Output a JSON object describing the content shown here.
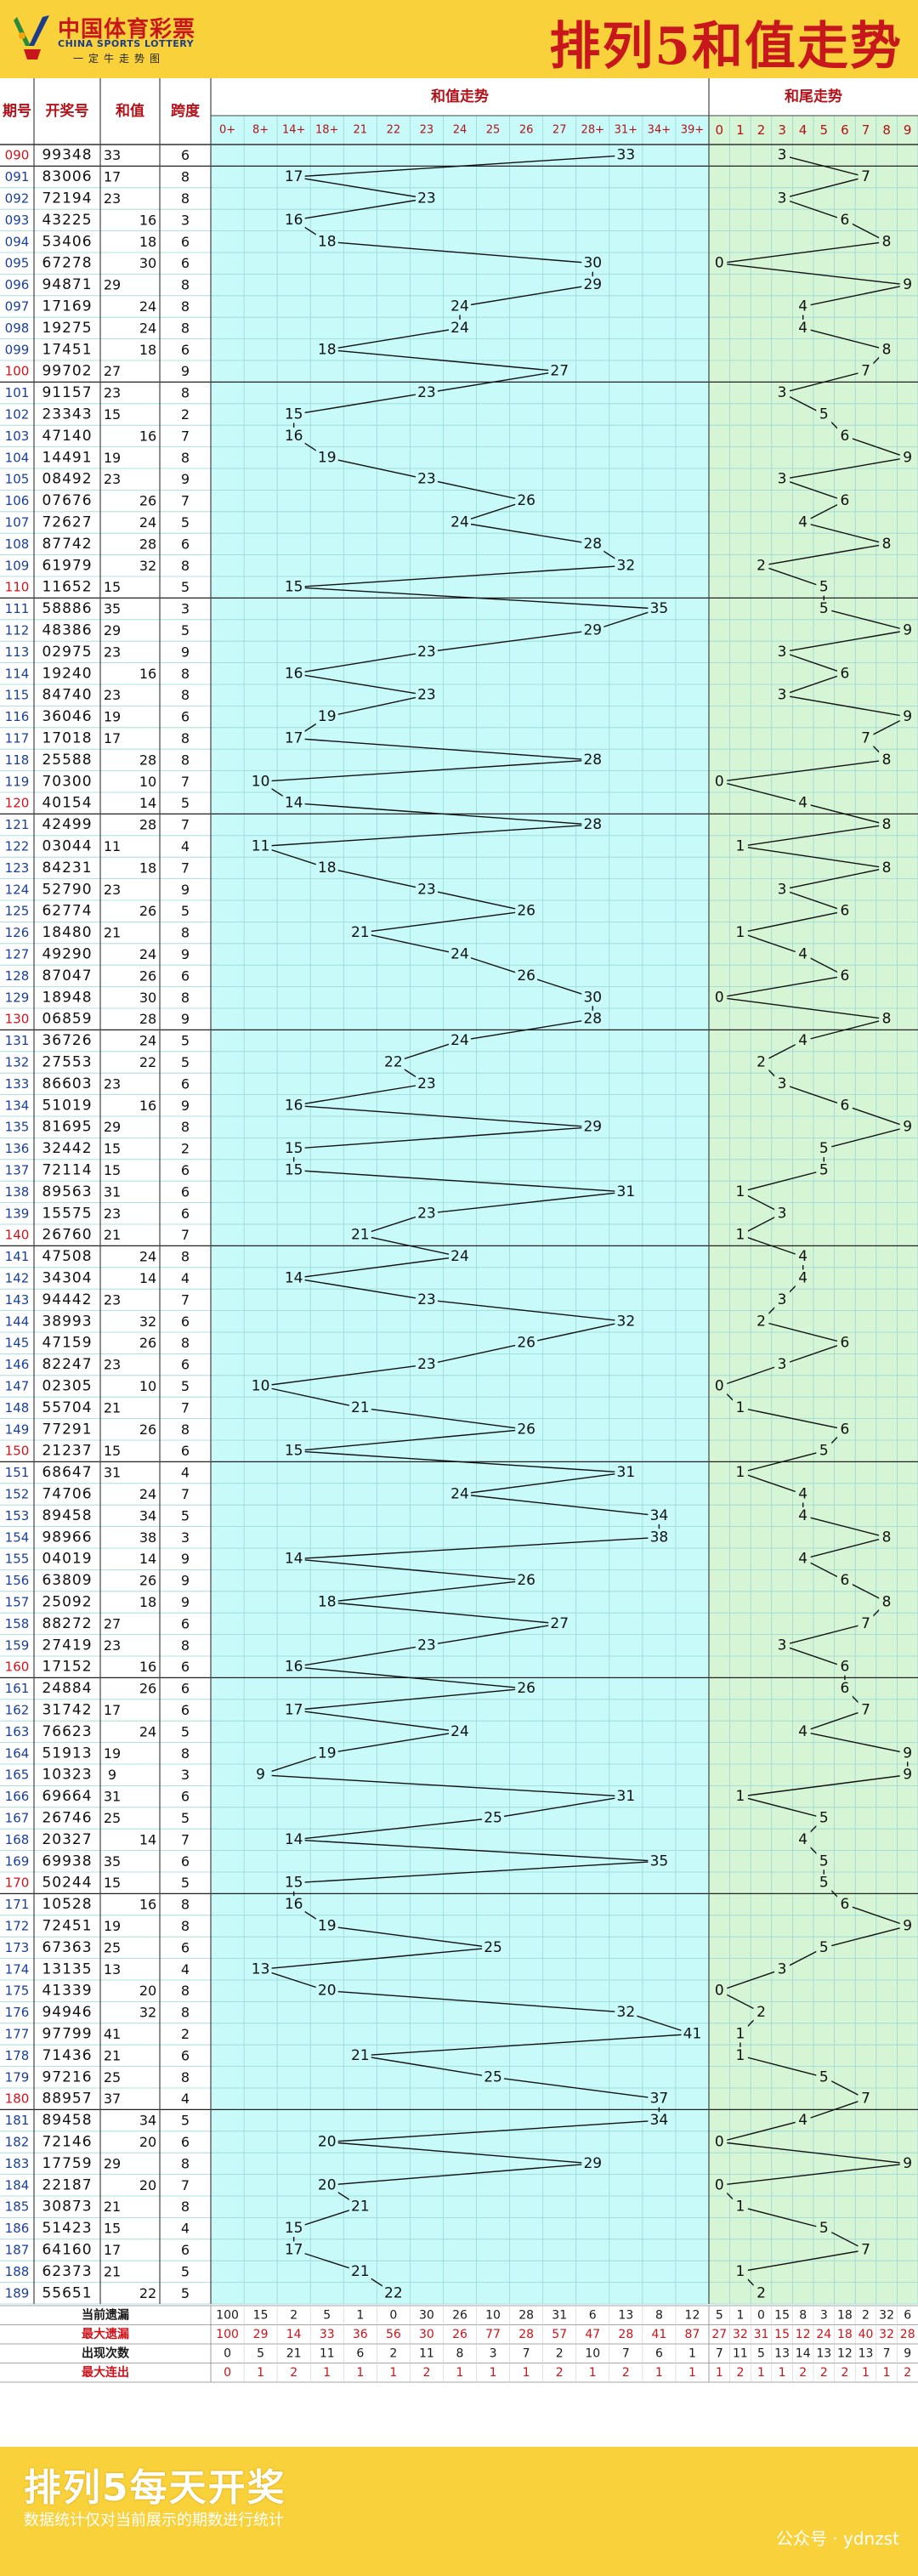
{
  "logo": {
    "cn": "中国体育彩票",
    "en": "CHINA SPORTS LOTTERY",
    "slogan": "一定牛走势图"
  },
  "chart_title": "排列5和值走势",
  "headers": {
    "period": "期号",
    "draw": "开奖号",
    "sum": "和值",
    "span": "跨度",
    "sum_trend": "和值走势",
    "tail_trend": "和尾走势"
  },
  "sum_bins": [
    "0+",
    "8+",
    "14+",
    "18+",
    "21",
    "22",
    "23",
    "24",
    "25",
    "26",
    "27",
    "28+",
    "31+",
    "34+",
    "39+"
  ],
  "tail_bins": [
    "0",
    "1",
    "2",
    "3",
    "4",
    "5",
    "6",
    "7",
    "8",
    "9"
  ],
  "stats": {
    "labels": [
      "当前遗漏",
      "最大遗漏",
      "出现次数",
      "最大连出"
    ],
    "sum": [
      [
        100,
        15,
        2,
        5,
        1,
        0,
        30,
        26,
        10,
        28,
        31,
        6,
        13,
        8,
        12
      ],
      [
        100,
        29,
        14,
        33,
        36,
        56,
        30,
        26,
        77,
        28,
        57,
        47,
        28,
        41,
        87
      ],
      [
        0,
        5,
        21,
        11,
        6,
        2,
        11,
        8,
        3,
        7,
        2,
        10,
        7,
        6,
        1
      ],
      [
        0,
        1,
        2,
        1,
        1,
        1,
        2,
        1,
        1,
        1,
        2,
        1,
        2,
        1,
        1
      ]
    ],
    "tail": [
      [
        5,
        1,
        0,
        15,
        8,
        3,
        18,
        2,
        32,
        6
      ],
      [
        27,
        32,
        31,
        15,
        12,
        24,
        18,
        40,
        32,
        28
      ],
      [
        7,
        11,
        5,
        13,
        14,
        13,
        12,
        13,
        7,
        9
      ],
      [
        1,
        2,
        1,
        1,
        2,
        2,
        2,
        1,
        1,
        2
      ]
    ]
  },
  "chart_data": {
    "type": "line",
    "title": "排列5和值走势",
    "periods": [
      "090",
      "091",
      "092",
      "093",
      "094",
      "095",
      "096",
      "097",
      "098",
      "099",
      "100",
      "101",
      "102",
      "103",
      "104",
      "105",
      "106",
      "107",
      "108",
      "109",
      "110",
      "111",
      "112",
      "113",
      "114",
      "115",
      "116",
      "117",
      "118",
      "119",
      "120",
      "121",
      "122",
      "123",
      "124",
      "125",
      "126",
      "127",
      "128",
      "129",
      "130",
      "131",
      "132",
      "133",
      "134",
      "135",
      "136",
      "137",
      "138",
      "139",
      "140",
      "141",
      "142",
      "143",
      "144",
      "145",
      "146",
      "147",
      "148",
      "149",
      "150",
      "151",
      "152",
      "153",
      "154",
      "155",
      "156",
      "157",
      "158",
      "159",
      "160",
      "161",
      "162",
      "163",
      "164",
      "165",
      "166",
      "167",
      "168",
      "169",
      "170",
      "171",
      "172",
      "173",
      "174",
      "175",
      "176",
      "177",
      "178",
      "179",
      "180",
      "181",
      "182",
      "183",
      "184",
      "185",
      "186",
      "187",
      "188",
      "189"
    ],
    "draws": [
      "99348",
      "83006",
      "72194",
      "43225",
      "53406",
      "67278",
      "94871",
      "17169",
      "19275",
      "17451",
      "99702",
      "91157",
      "23343",
      "47140",
      "14491",
      "08492",
      "07676",
      "72627",
      "87742",
      "61979",
      "11652",
      "58886",
      "48386",
      "02975",
      "19240",
      "84740",
      "36046",
      "17018",
      "25588",
      "70300",
      "40154",
      "42499",
      "03044",
      "84231",
      "52790",
      "62774",
      "18480",
      "49290",
      "87047",
      "18948",
      "06859",
      "36726",
      "27553",
      "86603",
      "51019",
      "81695",
      "32442",
      "72114",
      "89563",
      "15575",
      "26760",
      "47508",
      "34304",
      "94442",
      "38993",
      "47159",
      "82247",
      "02305",
      "55704",
      "77291",
      "21237",
      "68647",
      "74706",
      "89458",
      "98966",
      "04019",
      "63809",
      "25092",
      "88272",
      "27419",
      "17152",
      "24884",
      "31742",
      "76623",
      "51913",
      "10323",
      "69664",
      "26746",
      "20327",
      "69938",
      "50244",
      "10528",
      "72451",
      "67363",
      "13135",
      "41339",
      "94946",
      "97799",
      "71436",
      "97216",
      "88957",
      "89458",
      "72146",
      "17759",
      "22187",
      "30873",
      "51423",
      "64160",
      "62373",
      "55651"
    ],
    "sums": [
      33,
      17,
      23,
      16,
      18,
      30,
      29,
      24,
      24,
      18,
      27,
      23,
      15,
      16,
      19,
      23,
      26,
      24,
      28,
      32,
      15,
      35,
      29,
      23,
      16,
      23,
      19,
      17,
      28,
      10,
      14,
      28,
      11,
      18,
      23,
      26,
      21,
      24,
      26,
      30,
      28,
      24,
      22,
      23,
      16,
      29,
      15,
      15,
      31,
      23,
      21,
      24,
      14,
      23,
      32,
      26,
      23,
      10,
      21,
      26,
      15,
      31,
      24,
      34,
      38,
      14,
      26,
      18,
      27,
      23,
      16,
      26,
      17,
      24,
      19,
      9,
      31,
      25,
      14,
      35,
      15,
      16,
      19,
      25,
      13,
      20,
      32,
      41,
      21,
      25,
      37,
      34,
      20,
      29,
      20,
      21,
      15,
      17,
      21,
      22
    ],
    "spans": [
      6,
      8,
      8,
      3,
      6,
      6,
      8,
      8,
      8,
      6,
      9,
      8,
      2,
      7,
      8,
      9,
      7,
      5,
      6,
      8,
      5,
      3,
      5,
      9,
      8,
      8,
      6,
      8,
      8,
      7,
      5,
      7,
      4,
      7,
      9,
      5,
      8,
      9,
      6,
      8,
      9,
      5,
      5,
      6,
      9,
      8,
      2,
      6,
      6,
      6,
      7,
      8,
      4,
      7,
      6,
      8,
      6,
      5,
      7,
      8,
      6,
      4,
      7,
      5,
      3,
      9,
      9,
      9,
      6,
      8,
      6,
      6,
      6,
      5,
      8,
      3,
      6,
      5,
      7,
      6,
      5,
      8,
      8,
      6,
      4,
      8,
      8,
      2,
      6,
      8,
      4,
      5,
      6,
      8,
      7,
      8,
      4,
      6,
      5,
      5
    ],
    "x_label": "",
    "y_label": ""
  }
}
